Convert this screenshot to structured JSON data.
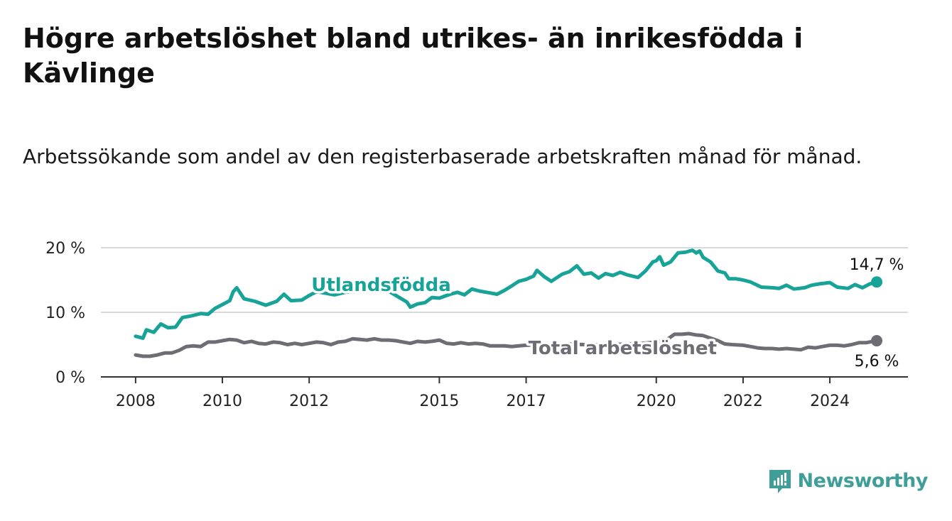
{
  "title": "Högre arbetslöshet bland utrikes- än inrikesfödda i Kävlinge",
  "subtitle": "Arbetssökande som andel av den registerbaserade arbetskraften månad för månad.",
  "brand": {
    "name": "Newsworthy",
    "color": "#3f9e97",
    "icon": "newsworthy-logo-icon"
  },
  "colors": {
    "foreign": "#17a398",
    "total": "#6e6c75",
    "grid": "#d9d9d9",
    "axis": "#333333"
  },
  "chart_data": {
    "type": "line",
    "ylim": [
      0,
      20
    ],
    "y_ticks": [
      {
        "value": 0,
        "label": "0 %"
      },
      {
        "value": 10,
        "label": "10 %"
      },
      {
        "value": 20,
        "label": "20 %"
      }
    ],
    "x_ticks": [
      {
        "value": 2008,
        "label": "2008"
      },
      {
        "value": 2010,
        "label": "2010"
      },
      {
        "value": 2012,
        "label": "2012"
      },
      {
        "value": 2015,
        "label": "2015"
      },
      {
        "value": 2017,
        "label": "2017"
      },
      {
        "value": 2020,
        "label": "2020"
      },
      {
        "value": 2022,
        "label": "2022"
      },
      {
        "value": 2024,
        "label": "2024"
      }
    ],
    "xlim": [
      2007.2,
      2025.8
    ],
    "grid": true,
    "series": [
      {
        "name": "Utlandsfödda",
        "end_label": "14,7 %",
        "points": [
          [
            2008.0,
            6.3
          ],
          [
            2008.17,
            6.0
          ],
          [
            2008.25,
            7.3
          ],
          [
            2008.42,
            6.9
          ],
          [
            2008.58,
            8.2
          ],
          [
            2008.75,
            7.6
          ],
          [
            2008.92,
            7.7
          ],
          [
            2009.08,
            9.2
          ],
          [
            2009.25,
            9.4
          ],
          [
            2009.5,
            9.8
          ],
          [
            2009.67,
            9.7
          ],
          [
            2009.83,
            10.6
          ],
          [
            2010.0,
            11.2
          ],
          [
            2010.17,
            11.8
          ],
          [
            2010.25,
            13.2
          ],
          [
            2010.33,
            13.8
          ],
          [
            2010.5,
            12.1
          ],
          [
            2010.75,
            11.7
          ],
          [
            2011.0,
            11.1
          ],
          [
            2011.25,
            11.7
          ],
          [
            2011.42,
            12.8
          ],
          [
            2011.58,
            11.8
          ],
          [
            2011.83,
            11.9
          ],
          [
            2012.0,
            12.6
          ],
          [
            2012.17,
            13.2
          ],
          [
            2012.42,
            12.9
          ],
          [
            2012.58,
            12.7
          ],
          [
            2012.83,
            13.1
          ],
          [
            2013.0,
            13.2
          ],
          [
            2013.33,
            13.4
          ],
          [
            2013.58,
            13.5
          ],
          [
            2013.83,
            13.3
          ],
          [
            2014.0,
            12.6
          ],
          [
            2014.25,
            11.6
          ],
          [
            2014.33,
            10.8
          ],
          [
            2014.5,
            11.3
          ],
          [
            2014.67,
            11.5
          ],
          [
            2014.83,
            12.3
          ],
          [
            2015.0,
            12.2
          ],
          [
            2015.25,
            12.8
          ],
          [
            2015.42,
            13.1
          ],
          [
            2015.58,
            12.7
          ],
          [
            2015.75,
            13.6
          ],
          [
            2015.92,
            13.3
          ],
          [
            2016.17,
            13.0
          ],
          [
            2016.33,
            12.8
          ],
          [
            2016.5,
            13.4
          ],
          [
            2016.67,
            14.1
          ],
          [
            2016.83,
            14.8
          ],
          [
            2017.0,
            15.1
          ],
          [
            2017.17,
            15.6
          ],
          [
            2017.25,
            16.5
          ],
          [
            2017.42,
            15.5
          ],
          [
            2017.58,
            14.8
          ],
          [
            2017.83,
            15.9
          ],
          [
            2018.0,
            16.3
          ],
          [
            2018.17,
            17.2
          ],
          [
            2018.33,
            15.9
          ],
          [
            2018.5,
            16.1
          ],
          [
            2018.67,
            15.3
          ],
          [
            2018.83,
            16.0
          ],
          [
            2019.0,
            15.7
          ],
          [
            2019.17,
            16.2
          ],
          [
            2019.33,
            15.8
          ],
          [
            2019.58,
            15.4
          ],
          [
            2019.75,
            16.4
          ],
          [
            2019.92,
            17.8
          ],
          [
            2020.0,
            18.0
          ],
          [
            2020.08,
            18.6
          ],
          [
            2020.17,
            17.3
          ],
          [
            2020.33,
            17.8
          ],
          [
            2020.5,
            19.2
          ],
          [
            2020.67,
            19.3
          ],
          [
            2020.83,
            19.6
          ],
          [
            2020.92,
            19.2
          ],
          [
            2021.0,
            19.5
          ],
          [
            2021.08,
            18.5
          ],
          [
            2021.25,
            17.8
          ],
          [
            2021.42,
            16.4
          ],
          [
            2021.58,
            16.1
          ],
          [
            2021.67,
            15.2
          ],
          [
            2021.83,
            15.2
          ],
          [
            2022.0,
            15.0
          ],
          [
            2022.17,
            14.7
          ],
          [
            2022.42,
            13.9
          ],
          [
            2022.67,
            13.8
          ],
          [
            2022.83,
            13.7
          ],
          [
            2023.0,
            14.2
          ],
          [
            2023.17,
            13.6
          ],
          [
            2023.42,
            13.8
          ],
          [
            2023.58,
            14.2
          ],
          [
            2023.75,
            14.4
          ],
          [
            2024.0,
            14.6
          ],
          [
            2024.17,
            13.9
          ],
          [
            2024.42,
            13.7
          ],
          [
            2024.58,
            14.3
          ],
          [
            2024.75,
            13.8
          ],
          [
            2024.92,
            14.4
          ],
          [
            2025.08,
            14.7
          ]
        ]
      },
      {
        "name": "Total arbetslöshet",
        "end_label": "5,6 %",
        "points": [
          [
            2008.0,
            3.4
          ],
          [
            2008.17,
            3.2
          ],
          [
            2008.33,
            3.2
          ],
          [
            2008.5,
            3.4
          ],
          [
            2008.67,
            3.7
          ],
          [
            2008.83,
            3.7
          ],
          [
            2009.0,
            4.1
          ],
          [
            2009.17,
            4.7
          ],
          [
            2009.33,
            4.8
          ],
          [
            2009.5,
            4.7
          ],
          [
            2009.67,
            5.4
          ],
          [
            2009.83,
            5.4
          ],
          [
            2010.0,
            5.6
          ],
          [
            2010.17,
            5.8
          ],
          [
            2010.33,
            5.7
          ],
          [
            2010.5,
            5.3
          ],
          [
            2010.67,
            5.5
          ],
          [
            2010.83,
            5.2
          ],
          [
            2011.0,
            5.1
          ],
          [
            2011.17,
            5.4
          ],
          [
            2011.33,
            5.3
          ],
          [
            2011.5,
            5.0
          ],
          [
            2011.67,
            5.2
          ],
          [
            2011.83,
            5.0
          ],
          [
            2012.0,
            5.2
          ],
          [
            2012.17,
            5.4
          ],
          [
            2012.33,
            5.3
          ],
          [
            2012.5,
            5.0
          ],
          [
            2012.67,
            5.4
          ],
          [
            2012.83,
            5.5
          ],
          [
            2013.0,
            5.9
          ],
          [
            2013.17,
            5.8
          ],
          [
            2013.33,
            5.7
          ],
          [
            2013.5,
            5.9
          ],
          [
            2013.67,
            5.7
          ],
          [
            2013.83,
            5.7
          ],
          [
            2014.0,
            5.6
          ],
          [
            2014.17,
            5.4
          ],
          [
            2014.33,
            5.2
          ],
          [
            2014.5,
            5.5
          ],
          [
            2014.67,
            5.4
          ],
          [
            2014.83,
            5.5
          ],
          [
            2015.0,
            5.7
          ],
          [
            2015.17,
            5.2
          ],
          [
            2015.33,
            5.1
          ],
          [
            2015.5,
            5.3
          ],
          [
            2015.67,
            5.1
          ],
          [
            2015.83,
            5.2
          ],
          [
            2016.0,
            5.1
          ],
          [
            2016.17,
            4.8
          ],
          [
            2016.33,
            4.8
          ],
          [
            2016.5,
            4.8
          ],
          [
            2016.67,
            4.7
          ],
          [
            2016.83,
            4.8
          ],
          [
            2017.0,
            4.9
          ],
          [
            2017.33,
            5.0
          ],
          [
            2017.67,
            5.0
          ],
          [
            2018.0,
            5.1
          ],
          [
            2018.33,
            5.0
          ],
          [
            2018.67,
            5.0
          ],
          [
            2019.0,
            5.0
          ],
          [
            2019.33,
            5.1
          ],
          [
            2019.67,
            5.2
          ],
          [
            2020.0,
            5.4
          ],
          [
            2020.25,
            5.8
          ],
          [
            2020.42,
            6.6
          ],
          [
            2020.58,
            6.6
          ],
          [
            2020.75,
            6.7
          ],
          [
            2020.92,
            6.5
          ],
          [
            2021.08,
            6.4
          ],
          [
            2021.25,
            6.0
          ],
          [
            2021.42,
            5.6
          ],
          [
            2021.58,
            5.1
          ],
          [
            2021.75,
            5.0
          ],
          [
            2022.0,
            4.9
          ],
          [
            2022.17,
            4.7
          ],
          [
            2022.33,
            4.5
          ],
          [
            2022.5,
            4.4
          ],
          [
            2022.67,
            4.4
          ],
          [
            2022.83,
            4.3
          ],
          [
            2023.0,
            4.4
          ],
          [
            2023.17,
            4.3
          ],
          [
            2023.33,
            4.2
          ],
          [
            2023.5,
            4.6
          ],
          [
            2023.67,
            4.5
          ],
          [
            2023.83,
            4.7
          ],
          [
            2024.0,
            4.9
          ],
          [
            2024.17,
            4.9
          ],
          [
            2024.33,
            4.8
          ],
          [
            2024.5,
            5.0
          ],
          [
            2024.67,
            5.3
          ],
          [
            2024.83,
            5.3
          ],
          [
            2025.08,
            5.6
          ]
        ]
      }
    ]
  }
}
